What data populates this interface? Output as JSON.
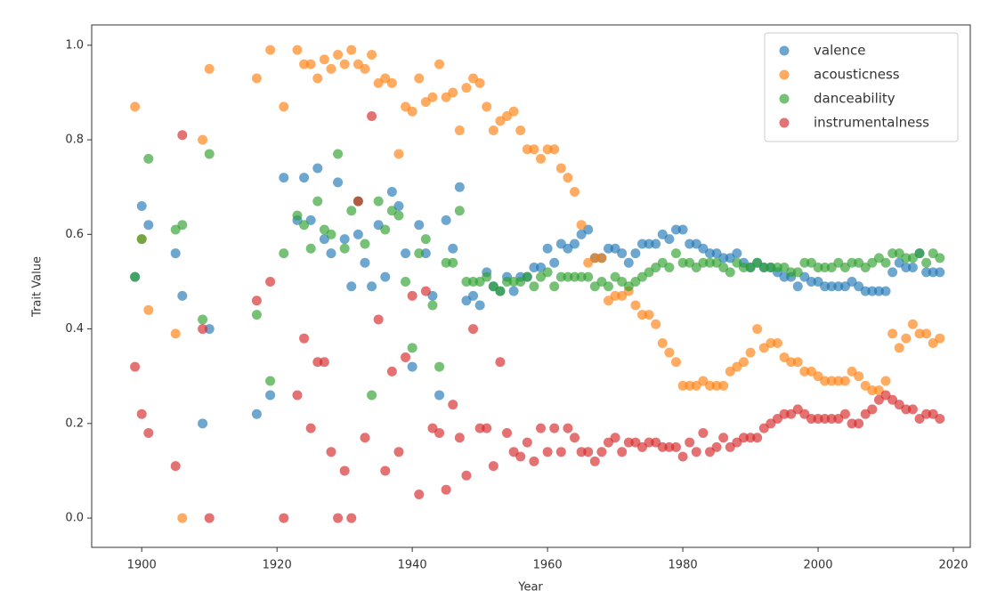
{
  "chart_data": {
    "type": "scatter",
    "xlabel": "Year",
    "ylabel": "Trait Value",
    "x": [
      1899,
      1900,
      1901,
      1905,
      1906,
      1909,
      1910,
      1917,
      1919,
      1921,
      1923,
      1924,
      1925,
      1926,
      1927,
      1928,
      1929,
      1930,
      1931,
      1932,
      1933,
      1934,
      1935,
      1936,
      1937,
      1938,
      1939,
      1940,
      1941,
      1942,
      1943,
      1944,
      1945,
      1946,
      1947,
      1948,
      1949,
      1950,
      1951,
      1952,
      1953,
      1954,
      1955,
      1956,
      1957,
      1958,
      1959,
      1960,
      1961,
      1962,
      1963,
      1964,
      1965,
      1966,
      1967,
      1968,
      1969,
      1970,
      1971,
      1972,
      1973,
      1974,
      1975,
      1976,
      1977,
      1978,
      1979,
      1980,
      1981,
      1982,
      1983,
      1984,
      1985,
      1986,
      1987,
      1988,
      1989,
      1990,
      1991,
      1992,
      1993,
      1994,
      1995,
      1996,
      1997,
      1998,
      1999,
      2000,
      2001,
      2002,
      2003,
      2004,
      2005,
      2006,
      2007,
      2008,
      2009,
      2010,
      2011,
      2012,
      2013,
      2014,
      2015,
      2016,
      2017,
      2018
    ],
    "series": [
      {
        "name": "valence",
        "color": "#1f77b4",
        "values": [
          0.51,
          0.66,
          0.62,
          0.56,
          0.47,
          0.2,
          0.4,
          0.22,
          0.26,
          0.72,
          0.63,
          0.72,
          0.63,
          0.74,
          0.59,
          0.56,
          0.71,
          0.59,
          0.49,
          0.6,
          0.54,
          0.49,
          0.62,
          0.51,
          0.69,
          0.66,
          0.56,
          0.32,
          0.62,
          0.56,
          0.47,
          0.26,
          0.63,
          0.57,
          0.7,
          0.46,
          0.47,
          0.45,
          0.52,
          0.49,
          0.48,
          0.51,
          0.48,
          0.51,
          0.51,
          0.53,
          0.53,
          0.57,
          0.54,
          0.58,
          0.57,
          0.58,
          0.6,
          0.61,
          0.55,
          0.55,
          0.57,
          0.57,
          0.56,
          0.54,
          0.56,
          0.58,
          0.58,
          0.58,
          0.6,
          0.59,
          0.61,
          0.61,
          0.58,
          0.58,
          0.57,
          0.56,
          0.56,
          0.55,
          0.55,
          0.56,
          0.54,
          0.53,
          0.54,
          0.53,
          0.53,
          0.52,
          0.51,
          0.51,
          0.49,
          0.51,
          0.5,
          0.5,
          0.49,
          0.49,
          0.49,
          0.49,
          0.5,
          0.49,
          0.48,
          0.48,
          0.48,
          0.48,
          0.52,
          0.54,
          0.53,
          0.53,
          0.56,
          0.52,
          0.52,
          0.52
        ]
      },
      {
        "name": "acousticness",
        "color": "#ff7f0e",
        "values": [
          0.87,
          0.59,
          0.44,
          0.39,
          0,
          0.8,
          0.95,
          0.93,
          0.99,
          0.87,
          0.99,
          0.96,
          0.96,
          0.93,
          0.97,
          0.95,
          0.98,
          0.96,
          0.99,
          0.96,
          0.95,
          0.98,
          0.92,
          0.93,
          0.92,
          0.77,
          0.87,
          0.86,
          0.93,
          0.88,
          0.89,
          0.96,
          0.89,
          0.9,
          0.82,
          0.91,
          0.93,
          0.92,
          0.87,
          0.82,
          0.84,
          0.85,
          0.86,
          0.82,
          0.78,
          0.78,
          0.76,
          0.78,
          0.78,
          0.74,
          0.72,
          0.69,
          0.62,
          0.54,
          0.55,
          0.55,
          0.46,
          0.47,
          0.47,
          0.48,
          0.45,
          0.43,
          0.43,
          0.41,
          0.37,
          0.35,
          0.33,
          0.28,
          0.28,
          0.28,
          0.29,
          0.28,
          0.28,
          0.28,
          0.31,
          0.32,
          0.33,
          0.35,
          0.4,
          0.36,
          0.37,
          0.37,
          0.34,
          0.33,
          0.33,
          0.31,
          0.31,
          0.3,
          0.29,
          0.29,
          0.29,
          0.29,
          0.31,
          0.3,
          0.28,
          0.27,
          0.27,
          0.29,
          0.39,
          0.36,
          0.38,
          0.41,
          0.39,
          0.39,
          0.37,
          0.38
        ]
      },
      {
        "name": "danceability",
        "color": "#2ca02c",
        "values": [
          0.51,
          0.59,
          0.76,
          0.61,
          0.62,
          0.42,
          0.77,
          0.43,
          0.29,
          0.56,
          0.64,
          0.62,
          0.57,
          0.67,
          0.61,
          0.6,
          0.77,
          0.57,
          0.65,
          0.67,
          0.58,
          0.26,
          0.67,
          0.61,
          0.65,
          0.64,
          0.5,
          0.36,
          0.56,
          0.59,
          0.45,
          0.32,
          0.54,
          0.54,
          0.65,
          0.5,
          0.5,
          0.5,
          0.51,
          0.49,
          0.48,
          0.5,
          0.5,
          0.5,
          0.51,
          0.49,
          0.51,
          0.52,
          0.49,
          0.51,
          0.51,
          0.51,
          0.51,
          0.51,
          0.49,
          0.5,
          0.49,
          0.51,
          0.5,
          0.49,
          0.5,
          0.51,
          0.52,
          0.53,
          0.54,
          0.53,
          0.56,
          0.54,
          0.54,
          0.53,
          0.54,
          0.54,
          0.54,
          0.53,
          0.52,
          0.54,
          0.53,
          0.53,
          0.54,
          0.53,
          0.53,
          0.53,
          0.53,
          0.52,
          0.52,
          0.54,
          0.54,
          0.53,
          0.53,
          0.53,
          0.54,
          0.53,
          0.54,
          0.54,
          0.53,
          0.54,
          0.55,
          0.54,
          0.56,
          0.56,
          0.55,
          0.55,
          0.56,
          0.54,
          0.56,
          0.55
        ]
      },
      {
        "name": "instrumentalness",
        "color": "#d62728",
        "values": [
          0.32,
          0.22,
          0.18,
          0.11,
          0.81,
          0.4,
          0,
          0.46,
          0.5,
          0,
          0.26,
          0.38,
          0.19,
          0.33,
          0.33,
          0.14,
          0,
          0.1,
          0,
          0.67,
          0.17,
          0.85,
          0.42,
          0.1,
          0.31,
          0.14,
          0.34,
          0.47,
          0.05,
          0.48,
          0.19,
          0.18,
          0.06,
          0.24,
          0.17,
          0.09,
          0.4,
          0.19,
          0.19,
          0.11,
          0.33,
          0.18,
          0.14,
          0.13,
          0.16,
          0.12,
          0.19,
          0.14,
          0.19,
          0.14,
          0.19,
          0.17,
          0.14,
          0.14,
          0.12,
          0.14,
          0.16,
          0.17,
          0.14,
          0.16,
          0.16,
          0.15,
          0.16,
          0.16,
          0.15,
          0.15,
          0.15,
          0.13,
          0.16,
          0.14,
          0.18,
          0.14,
          0.15,
          0.17,
          0.15,
          0.16,
          0.17,
          0.17,
          0.17,
          0.19,
          0.2,
          0.21,
          0.22,
          0.22,
          0.23,
          0.22,
          0.21,
          0.21,
          0.21,
          0.21,
          0.21,
          0.22,
          0.2,
          0.2,
          0.22,
          0.23,
          0.25,
          0.26,
          0.25,
          0.24,
          0.23,
          0.23,
          0.21,
          0.22,
          0.22,
          0.21
        ]
      }
    ],
    "xlim": [
      1892.6,
      2022.5
    ],
    "ylim": [
      -0.062,
      1.043
    ],
    "xticks": [
      1900,
      1920,
      1940,
      1960,
      1980,
      2000,
      2020
    ],
    "yticks": [
      {
        "value": 0,
        "label": "0.0"
      },
      0.2,
      0.4,
      0.6,
      0.8,
      {
        "value": 1,
        "label": "1.0"
      }
    ],
    "legend": "upper right"
  }
}
